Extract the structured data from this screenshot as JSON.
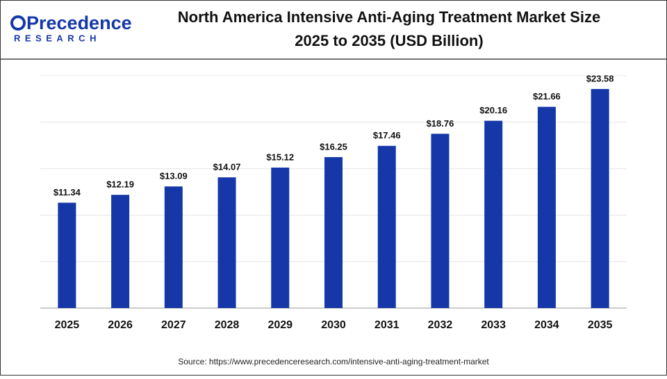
{
  "logo": {
    "name": "Precedence",
    "tagline": "RESEARCH"
  },
  "chart_data": {
    "type": "bar",
    "title": [
      "North America Intensive Anti-Aging Treatment Market Size",
      "2025 to 2035 (USD Billion)"
    ],
    "categories": [
      "2025",
      "2026",
      "2027",
      "2028",
      "2029",
      "2030",
      "2031",
      "2032",
      "2033",
      "2034",
      "2035"
    ],
    "values": [
      11.34,
      12.19,
      13.09,
      14.07,
      15.12,
      16.25,
      17.46,
      18.76,
      20.16,
      21.66,
      23.58
    ],
    "value_labels": [
      "$11.34",
      "$12.19",
      "$13.09",
      "$14.07",
      "$15.12",
      "$16.25",
      "$17.46",
      "$18.76",
      "$20.16",
      "$21.66",
      "$23.58"
    ],
    "color": "#1537a8",
    "ylim": [
      0,
      25
    ],
    "yticks": [
      0,
      5,
      10,
      15,
      20,
      25
    ],
    "grid": true,
    "source": "Source: https://www.precedenceresearch.com/intensive-anti-aging-treatment-market"
  }
}
